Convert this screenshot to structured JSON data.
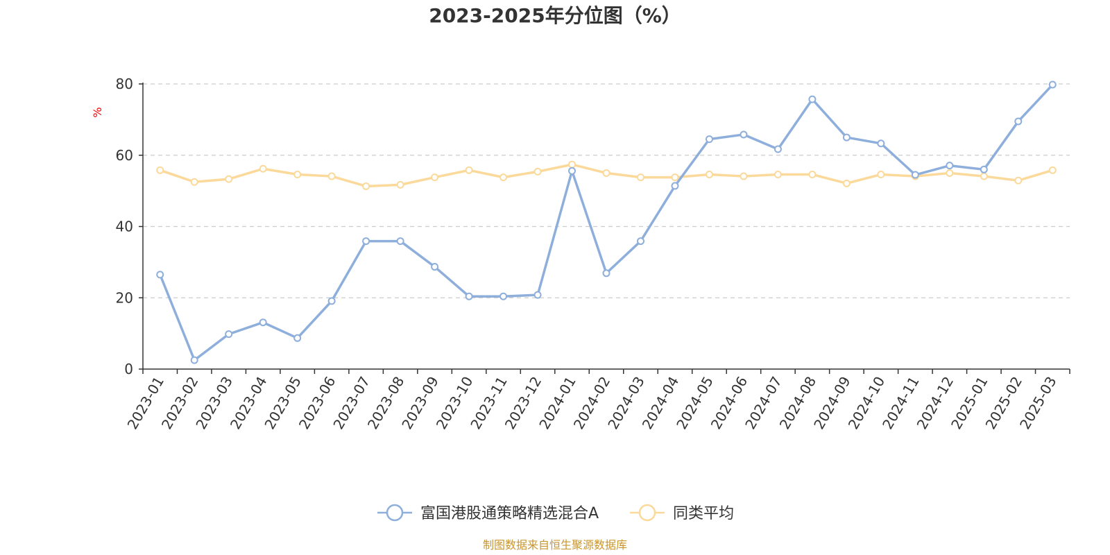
{
  "chart_data": {
    "type": "line",
    "title": "2023-2025年分位图（%）",
    "ylabel": "%",
    "ylim": [
      0,
      80
    ],
    "yticks": [
      "0",
      "20",
      "40",
      "60",
      "80"
    ],
    "grid": true,
    "legend_position": "bottom",
    "categories": [
      "2023-01",
      "2023-02",
      "2023-03",
      "2023-04",
      "2023-05",
      "2023-06",
      "2023-07",
      "2023-08",
      "2023-09",
      "2023-10",
      "2023-11",
      "2023-12",
      "2024-01",
      "2024-02",
      "2024-03",
      "2024-04",
      "2024-05",
      "2024-06",
      "2024-07",
      "2024-08",
      "2024-09",
      "2024-10",
      "2024-11",
      "2024-12",
      "2025-01",
      "2025-02",
      "2025-03"
    ],
    "series": [
      {
        "name": "富国港股通策略精选混合A",
        "color": "#8eaedb",
        "values": [
          26.5,
          2.5,
          9.8,
          13.1,
          8.7,
          19.1,
          35.9,
          35.9,
          28.7,
          20.4,
          20.4,
          20.8,
          55.6,
          26.9,
          35.9,
          51.4,
          64.5,
          65.8,
          61.7,
          75.7,
          65.0,
          63.3,
          54.5,
          57.1,
          56.0,
          69.5,
          79.8
        ]
      },
      {
        "name": "同类平均",
        "color": "#fbd99a",
        "values": [
          55.8,
          52.5,
          53.3,
          56.2,
          54.6,
          54.1,
          51.3,
          51.7,
          53.8,
          55.8,
          53.8,
          55.4,
          57.4,
          55.0,
          53.8,
          53.8,
          54.6,
          54.1,
          54.6,
          54.6,
          52.1,
          54.6,
          54.1,
          55.0,
          54.1,
          52.9,
          55.8
        ]
      }
    ],
    "source": "制图数据来自恒生聚源数据库"
  }
}
